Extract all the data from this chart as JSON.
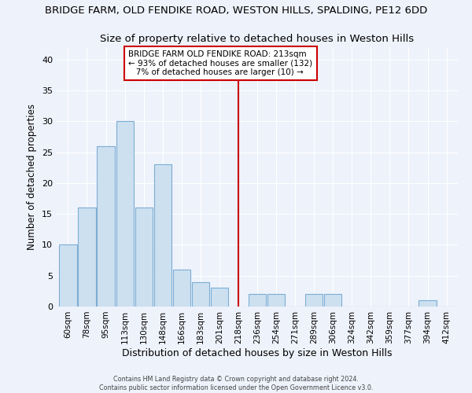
{
  "title": "BRIDGE FARM, OLD FENDIKE ROAD, WESTON HILLS, SPALDING, PE12 6DD",
  "subtitle": "Size of property relative to detached houses in Weston Hills",
  "xlabel": "Distribution of detached houses by size in Weston Hills",
  "ylabel": "Number of detached properties",
  "bin_labels": [
    "60sqm",
    "78sqm",
    "95sqm",
    "113sqm",
    "130sqm",
    "148sqm",
    "166sqm",
    "183sqm",
    "201sqm",
    "218sqm",
    "236sqm",
    "254sqm",
    "271sqm",
    "289sqm",
    "306sqm",
    "324sqm",
    "342sqm",
    "359sqm",
    "377sqm",
    "394sqm",
    "412sqm"
  ],
  "bar_values": [
    10,
    16,
    26,
    30,
    16,
    23,
    6,
    4,
    3,
    0,
    2,
    2,
    0,
    2,
    2,
    0,
    0,
    0,
    0,
    1,
    0
  ],
  "bar_color": "#cce0f0",
  "bar_edge_color": "#7dadd4",
  "vline_x": 9.0,
  "vline_color": "#cc0000",
  "annotation_title": "BRIDGE FARM OLD FENDIKE ROAD: 213sqm",
  "annotation_line1": "← 93% of detached houses are smaller (132)",
  "annotation_line2": "   7% of detached houses are larger (10) →",
  "ylim": [
    0,
    42
  ],
  "yticks": [
    0,
    5,
    10,
    15,
    20,
    25,
    30,
    35,
    40
  ],
  "footer1": "Contains HM Land Registry data © Crown copyright and database right 2024.",
  "footer2": "Contains public sector information licensed under the Open Government Licence v3.0.",
  "bg_color": "#eef2fb",
  "title_fontsize": 9.5,
  "subtitle_fontsize": 9.5,
  "annotation_box_color": "#cc0000"
}
